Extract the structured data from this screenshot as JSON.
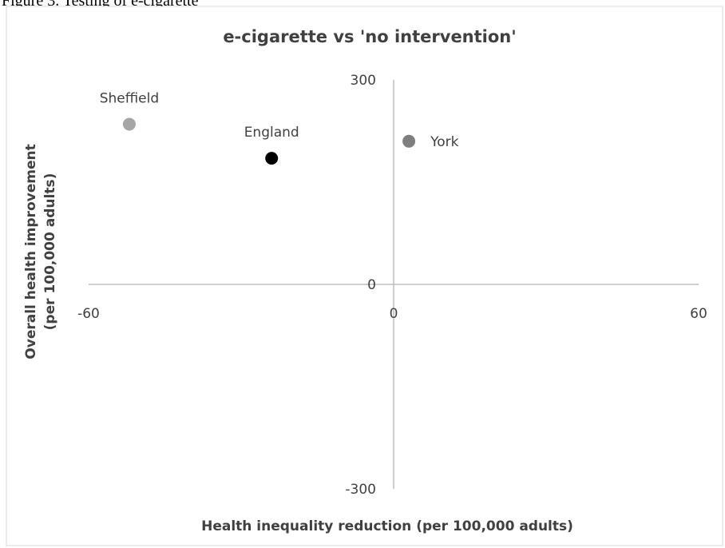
{
  "figure_caption": "Figure 3. Testing of e-cigarette",
  "chart_data": {
    "type": "scatter",
    "title": "e-cigarette vs 'no intervention'",
    "xlabel": "Health inequality reduction (per 100,000 adults)",
    "ylabel_line1": "Overall health improvement",
    "ylabel_line2": "(per 100,000 adults)",
    "xlim": [
      -60,
      60
    ],
    "ylim": [
      -300,
      300
    ],
    "x_ticks": [
      "-60",
      "0",
      "60"
    ],
    "y_ticks": [
      "300",
      "0",
      "-300"
    ],
    "grid": false,
    "legend": "none",
    "points": [
      {
        "label": "Sheffield",
        "x": -52,
        "y": 235,
        "color": "#a6a6a6",
        "label_position": "above"
      },
      {
        "label": "England",
        "x": -24,
        "y": 185,
        "color": "#000000",
        "label_position": "above"
      },
      {
        "label": "York",
        "x": 3,
        "y": 210,
        "color": "#7f7f7f",
        "label_position": "right"
      }
    ]
  }
}
